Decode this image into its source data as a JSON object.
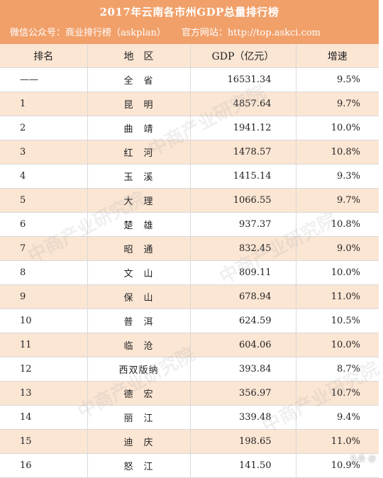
{
  "title": "2017年云南各市州GDP总量排行榜",
  "subtitle": {
    "wechat": "微信公众号：商业排行榜（askplan）",
    "website": "官方网站：http://top.askci.com"
  },
  "colors": {
    "banner": "#f1a06a",
    "stripe": "#fbe5d3"
  },
  "table": {
    "headers": [
      "排名",
      "地　区",
      "GDP（亿元）",
      "增速"
    ],
    "rows": [
      {
        "rank": "——",
        "region": "全　省",
        "gdp": "16531.34",
        "growth": "9.5%"
      },
      {
        "rank": "1",
        "region": "昆　明",
        "gdp": "4857.64",
        "growth": "9.7%"
      },
      {
        "rank": "2",
        "region": "曲　靖",
        "gdp": "1941.12",
        "growth": "10.0%"
      },
      {
        "rank": "3",
        "region": "红　河",
        "gdp": "1478.57",
        "growth": "10.8%"
      },
      {
        "rank": "4",
        "region": "玉　溪",
        "gdp": "1415.14",
        "growth": "9.3%"
      },
      {
        "rank": "5",
        "region": "大　理",
        "gdp": "1066.55",
        "growth": "9.7%"
      },
      {
        "rank": "6",
        "region": "楚　雄",
        "gdp": "937.37",
        "growth": "10.8%"
      },
      {
        "rank": "7",
        "region": "昭　通",
        "gdp": "832.45",
        "growth": "9.0%"
      },
      {
        "rank": "8",
        "region": "文　山",
        "gdp": "809.11",
        "growth": "10.0%"
      },
      {
        "rank": "9",
        "region": "保　山",
        "gdp": "678.94",
        "growth": "11.0%"
      },
      {
        "rank": "10",
        "region": "普　洱",
        "gdp": "624.59",
        "growth": "10.5%"
      },
      {
        "rank": "11",
        "region": "临　沧",
        "gdp": "604.06",
        "growth": "10.0%"
      },
      {
        "rank": "12",
        "region": "西双版纳",
        "gdp": "393.84",
        "growth": "8.7%"
      },
      {
        "rank": "13",
        "region": "德　宏",
        "gdp": "356.97",
        "growth": "10.7%"
      },
      {
        "rank": "14",
        "region": "丽　江",
        "gdp": "339.48",
        "growth": "9.4%"
      },
      {
        "rank": "15",
        "region": "迪　庆",
        "gdp": "198.65",
        "growth": "11.0%"
      },
      {
        "rank": "16",
        "region": "怒　江",
        "gdp": "141.50",
        "growth": "10.9%"
      }
    ]
  },
  "watermark": "中商产业研究院",
  "corner_mark": "头条 @"
}
